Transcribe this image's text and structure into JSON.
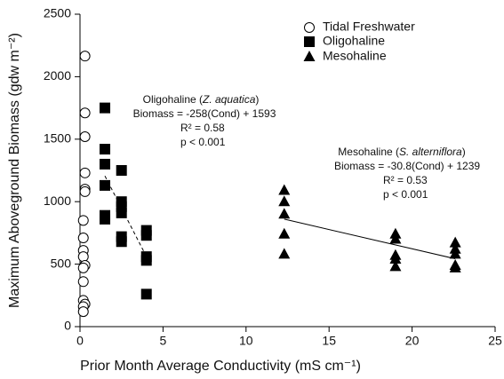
{
  "chart_data": {
    "type": "scatter",
    "x_label": "Prior Month Average Conductivity (mS cm⁻¹)",
    "y_label": "Maximum Aboveground Biomass (gdw m⁻²)",
    "xlim": [
      0,
      25
    ],
    "xticks": [
      0,
      5,
      10,
      15,
      20,
      25
    ],
    "ylim": [
      0,
      2500
    ],
    "yticks": [
      0,
      500,
      1000,
      1500,
      2000,
      2500
    ],
    "legend": "upper right",
    "series": [
      {
        "name": "Tidal Freshwater",
        "marker": "open-circle",
        "color": "#000000",
        "x": [
          0.3,
          0.3,
          0.3,
          0.3,
          0.3,
          0.3,
          0.2,
          0.2,
          0.2,
          0.2,
          0.3,
          0.2,
          0.2,
          0.2,
          0.3,
          0.2,
          0.2
        ],
        "values": [
          2165,
          1710,
          1520,
          1230,
          1100,
          1080,
          850,
          710,
          610,
          560,
          490,
          470,
          360,
          210,
          180,
          160,
          120
        ]
      },
      {
        "name": "Oligohaline",
        "marker": "square",
        "color": "#000000",
        "x": [
          1.5,
          1.5,
          1.5,
          1.5,
          1.5,
          1.5,
          2.5,
          2.5,
          2.5,
          2.5,
          2.5,
          2.5,
          4,
          4,
          4,
          4,
          4
        ],
        "values": [
          1750,
          1420,
          1300,
          1130,
          890,
          860,
          1250,
          1000,
          960,
          910,
          720,
          680,
          770,
          730,
          560,
          530,
          260
        ]
      },
      {
        "name": "Mesohaline",
        "marker": "triangle",
        "color": "#000000",
        "x": [
          12.3,
          12.3,
          12.3,
          12.3,
          12.3,
          19,
          19,
          19,
          19,
          19,
          22.6,
          22.6,
          22.6,
          22.6,
          22.6
        ],
        "values": [
          1090,
          1000,
          900,
          740,
          580,
          740,
          700,
          570,
          540,
          480,
          670,
          620,
          580,
          490,
          470
        ]
      }
    ],
    "fits": [
      {
        "slope": -258,
        "intercept": 1593,
        "x_range": [
          1.5,
          4
        ],
        "dashed": true
      },
      {
        "slope": -30.8,
        "intercept": 1239,
        "x_range": [
          12.3,
          22.6
        ],
        "dashed": false
      }
    ],
    "annotations": [
      {
        "lines": [
          {
            "prefix": "Oligohaline (",
            "italic": "Z. aquatica",
            "suffix": ")"
          },
          "Biomass = -258(Cond) + 1593",
          "R² = 0.58",
          "p < 0.001"
        ]
      },
      {
        "lines": [
          {
            "prefix": "Mesohaline (",
            "italic": "S. alterniflora",
            "suffix": ")"
          },
          "Biomass = -30.8(Cond) + 1239",
          "R² = 0.53",
          "p < 0.001"
        ]
      }
    ]
  }
}
